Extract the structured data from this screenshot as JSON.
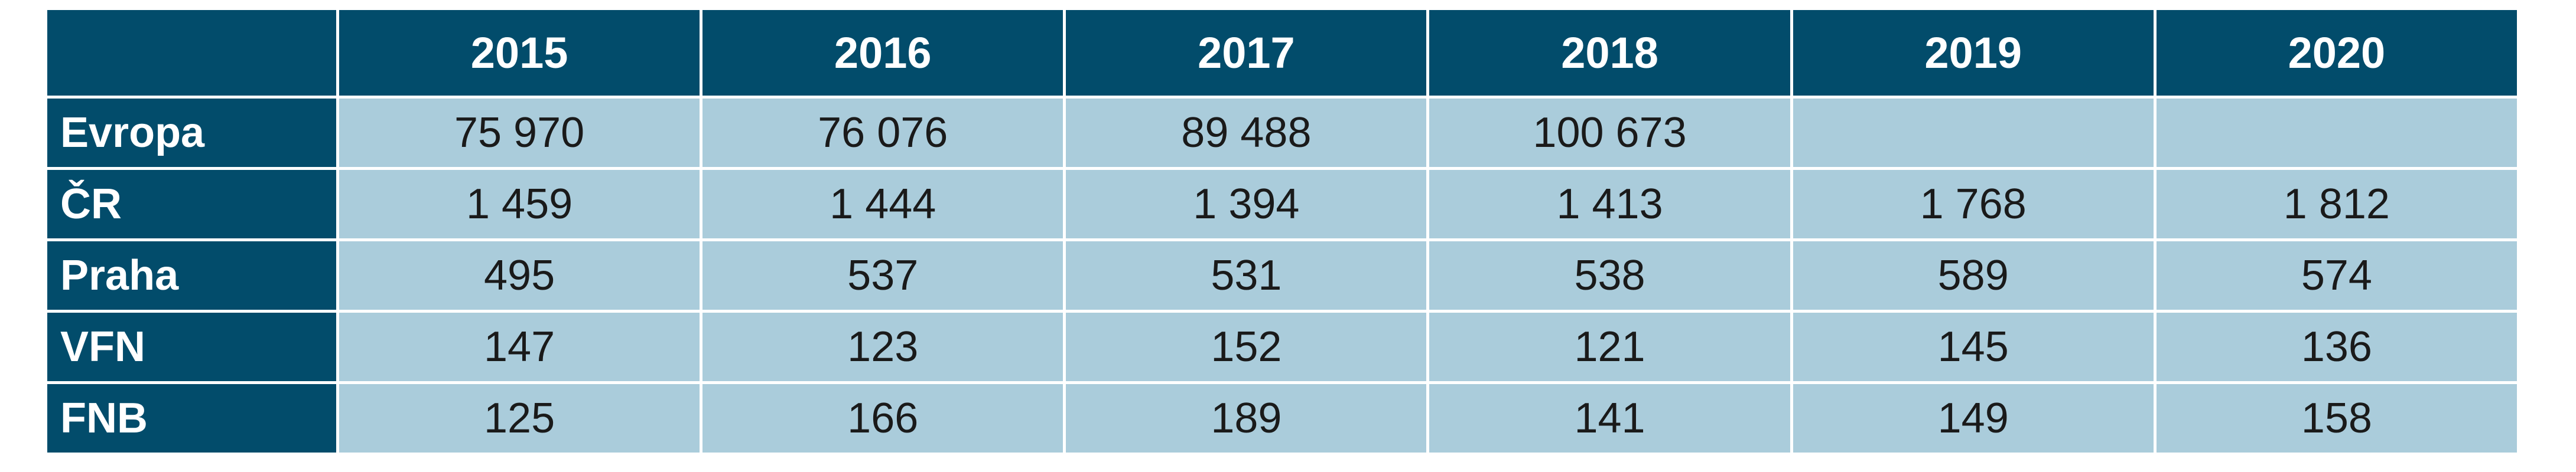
{
  "table": {
    "columns": [
      "2015",
      "2016",
      "2017",
      "2018",
      "2019",
      "2020"
    ],
    "rows": [
      {
        "label": "Evropa",
        "cells": [
          "75 970",
          "76 076",
          "89 488",
          "100 673",
          "",
          ""
        ]
      },
      {
        "label": "ČR",
        "cells": [
          "1 459",
          "1 444",
          "1 394",
          "1 413",
          "1 768",
          "1 812"
        ]
      },
      {
        "label": "Praha",
        "cells": [
          "495",
          "537",
          "531",
          "538",
          "589",
          "574"
        ]
      },
      {
        "label": "VFN",
        "cells": [
          "147",
          "123",
          "152",
          "121",
          "145",
          "136"
        ]
      },
      {
        "label": "FNB",
        "cells": [
          "125",
          "166",
          "189",
          "141",
          "149",
          "158"
        ]
      }
    ]
  },
  "colors": {
    "header_bg": "#024c6b",
    "header_text": "#ffffff",
    "cell_bg": "#aaccdb",
    "cell_text": "#1a1a1a"
  }
}
